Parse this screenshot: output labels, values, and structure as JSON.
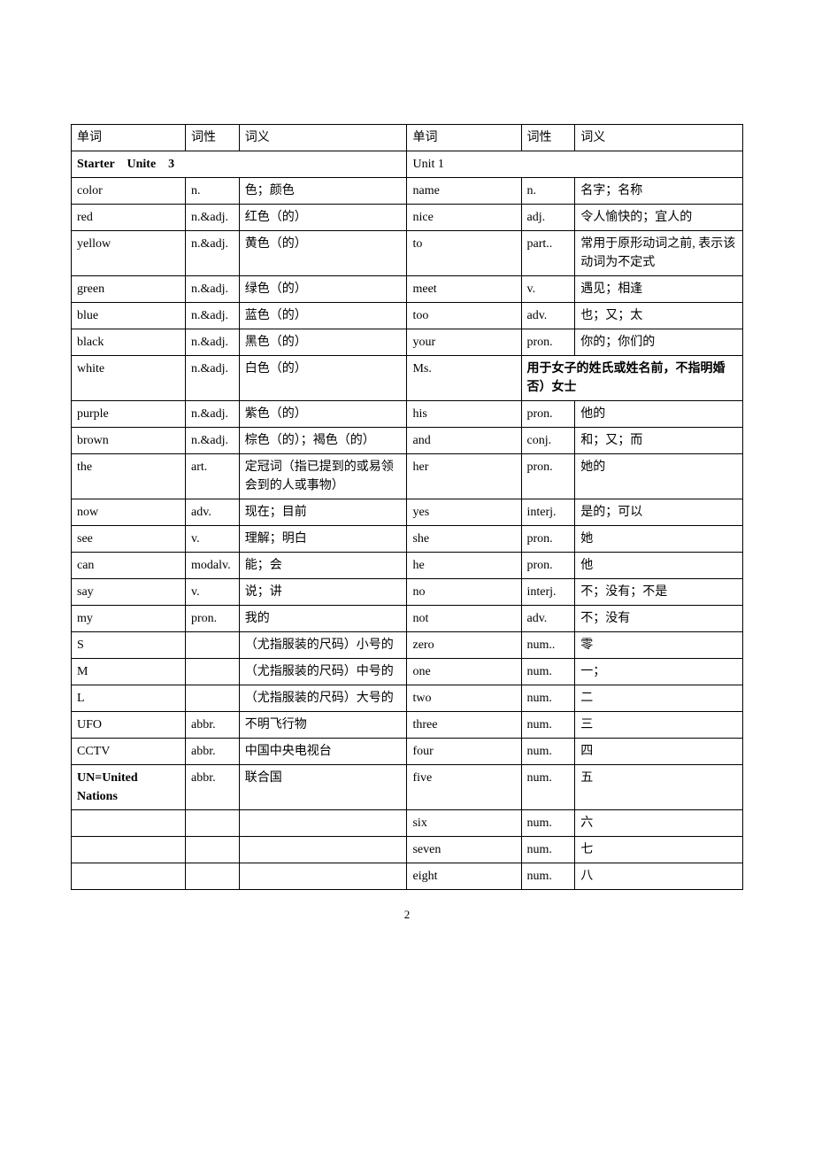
{
  "headers": {
    "word": "单词",
    "pos": "词性",
    "def": "词义"
  },
  "section_headers": {
    "left": "Starter　Unite　3",
    "right": "Unit 1"
  },
  "rows": [
    {
      "l": [
        "color",
        "n.",
        "色；颜色"
      ],
      "r": [
        "name",
        "n.",
        "名字；名称"
      ]
    },
    {
      "l": [
        "red",
        "n.&adj.",
        "红色（的）"
      ],
      "r": [
        "nice",
        "adj.",
        "令人愉快的；宜人的"
      ]
    },
    {
      "l": [
        "yellow",
        "n.&adj.",
        "黄色（的）"
      ],
      "r": [
        "to",
        "part..",
        "常用于原形动词之前, 表示该动词为不定式"
      ]
    },
    {
      "l": [
        "green",
        "n.&adj.",
        "绿色（的）"
      ],
      "r": [
        "meet",
        "v.",
        "遇见；相逢"
      ]
    },
    {
      "l": [
        "blue",
        "n.&adj.",
        "蓝色（的）"
      ],
      "r": [
        "too",
        "adv.",
        "也；又；太"
      ]
    },
    {
      "l": [
        "black",
        "n.&adj.",
        "黑色（的）"
      ],
      "r": [
        "your",
        "pron.",
        "你的；你们的"
      ]
    },
    {
      "l": [
        "white",
        "n.&adj.",
        "白色（的）"
      ],
      "r": [
        "Ms.",
        "",
        ""
      ],
      "r_merged": true,
      "r_merged_text": "用于女子的姓氏或姓名前，不指明婚否）女士"
    },
    {
      "l": [
        "purple",
        "n.&adj.",
        "紫色（的）"
      ],
      "r": [
        "his",
        "pron.",
        "他的"
      ]
    },
    {
      "l": [
        "brown",
        "n.&adj.",
        "棕色（的）；褐色（的）"
      ],
      "r": [
        "and",
        "conj.",
        "和；又；而"
      ]
    },
    {
      "l": [
        "the",
        "art.",
        "定冠词（指已提到的或易领会到的人或事物）"
      ],
      "r": [
        "her",
        "pron.",
        "她的"
      ]
    },
    {
      "l": [
        "now",
        "adv.",
        "现在；目前"
      ],
      "r": [
        "yes",
        "interj.",
        "是的；可以"
      ]
    },
    {
      "l": [
        "see",
        "v.",
        "理解；明白"
      ],
      "r": [
        "she",
        "pron.",
        "她"
      ]
    },
    {
      "l": [
        "can",
        "modalv.",
        "能；会"
      ],
      "r": [
        "he",
        "pron.",
        "他"
      ]
    },
    {
      "l": [
        "say",
        "v.",
        "说；讲"
      ],
      "r": [
        "no",
        "interj.",
        "不；没有；不是"
      ]
    },
    {
      "l": [
        "my",
        "pron.",
        "我的"
      ],
      "r": [
        "not",
        "adv.",
        "不；没有"
      ]
    },
    {
      "l": [
        "S",
        "",
        "（尤指服装的尺码）小号的"
      ],
      "r": [
        "zero",
        "num..",
        "零"
      ]
    },
    {
      "l": [
        "M",
        "",
        "（尤指服装的尺码）中号的"
      ],
      "r": [
        "one",
        "num.",
        "一；"
      ]
    },
    {
      "l": [
        "L",
        "",
        "（尤指服装的尺码）大号的"
      ],
      "r": [
        "two",
        "num.",
        "二"
      ]
    },
    {
      "l": [
        "UFO",
        "abbr.",
        "不明飞行物"
      ],
      "r": [
        "three",
        "num.",
        "三"
      ]
    },
    {
      "l": [
        "CCTV",
        "abbr.",
        "中国中央电视台"
      ],
      "r": [
        "four",
        "num.",
        "四"
      ]
    },
    {
      "l": [
        "UN=United Nations",
        "abbr.",
        "联合国"
      ],
      "l_bold": true,
      "r": [
        "five",
        "num.",
        "五"
      ]
    },
    {
      "l": [
        "",
        "",
        ""
      ],
      "r": [
        "six",
        "num.",
        "六"
      ]
    },
    {
      "l": [
        "",
        "",
        ""
      ],
      "r": [
        "seven",
        "num.",
        "七"
      ]
    },
    {
      "l": [
        "",
        "",
        ""
      ],
      "r": [
        "eight",
        "num.",
        "八"
      ]
    }
  ],
  "page_number": "2",
  "styles": {
    "font_size_body": 14,
    "font_size_pagenum": 13,
    "border_color": "#000000",
    "text_color": "#000000",
    "background_color": "#ffffff",
    "col_widths_pct": [
      17,
      8,
      25,
      17,
      8,
      25
    ]
  }
}
